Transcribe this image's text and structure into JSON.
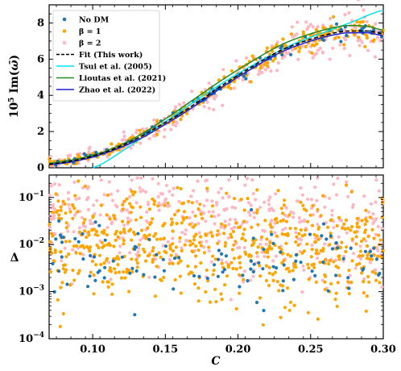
{
  "chart_data": [
    {
      "type": "scatter",
      "panel": "top",
      "xlim": [
        0.07,
        0.3
      ],
      "ylim": [
        0,
        9
      ],
      "ylabel": "10^5 Im(ω)",
      "yticks": [
        "0",
        "2",
        "4",
        "6",
        "8"
      ],
      "legend": {
        "placement": "upper-left",
        "entries": [
          {
            "label": "No DM",
            "marker": "dot",
            "color": "#1f77b4"
          },
          {
            "label": "β = 1",
            "marker": "dot",
            "color": "#ffa500"
          },
          {
            "label": "β = 2",
            "marker": "dot",
            "color": "#ffb6c1"
          },
          {
            "label": "Fit (This work)",
            "marker": "dashed-line",
            "color": "#000000"
          },
          {
            "label": "Tsui et al. (2005)",
            "marker": "line",
            "color": "#00e5ee"
          },
          {
            "label": "Lioutas et al. (2021)",
            "marker": "line",
            "color": "#228b22"
          },
          {
            "label": "Zhao et al. (2022)",
            "marker": "line",
            "color": "#1f1fcc"
          }
        ]
      },
      "series": [
        {
          "name": "Fit (This work)",
          "style": "dashed",
          "color": "#000000",
          "x": [
            0.07,
            0.09,
            0.11,
            0.13,
            0.15,
            0.17,
            0.19,
            0.21,
            0.23,
            0.25,
            0.27,
            0.28,
            0.29,
            0.3
          ],
          "y": [
            0.2,
            0.45,
            0.9,
            1.6,
            2.5,
            3.5,
            4.6,
            5.6,
            6.5,
            7.1,
            7.5,
            7.55,
            7.55,
            7.4
          ]
        },
        {
          "name": "Tsui et al. (2005)",
          "style": "solid",
          "color": "#00e5ee",
          "x": [
            0.1,
            0.12,
            0.14,
            0.16,
            0.18,
            0.2,
            0.22,
            0.24,
            0.26,
            0.28,
            0.3
          ],
          "y": [
            0.0,
            0.9,
            2.0,
            3.1,
            4.2,
            5.2,
            6.1,
            6.9,
            7.5,
            8.1,
            8.7
          ]
        },
        {
          "name": "Lioutas et al. (2021)",
          "style": "solid",
          "color": "#228b22",
          "x": [
            0.07,
            0.09,
            0.11,
            0.13,
            0.15,
            0.17,
            0.19,
            0.21,
            0.23,
            0.25,
            0.27,
            0.28,
            0.29,
            0.3
          ],
          "y": [
            0.25,
            0.5,
            0.95,
            1.7,
            2.7,
            3.8,
            4.9,
            5.9,
            6.8,
            7.4,
            7.8,
            7.85,
            7.8,
            7.6
          ]
        },
        {
          "name": "Zhao et al. (2022)",
          "style": "solid",
          "color": "#1f1fcc",
          "x": [
            0.07,
            0.09,
            0.11,
            0.13,
            0.15,
            0.17,
            0.19,
            0.21,
            0.23,
            0.25,
            0.27,
            0.28,
            0.29,
            0.3
          ],
          "y": [
            0.18,
            0.4,
            0.85,
            1.5,
            2.4,
            3.4,
            4.5,
            5.5,
            6.4,
            7.0,
            7.4,
            7.45,
            7.45,
            7.3
          ]
        }
      ],
      "scatter_series": [
        {
          "name": "β = 2",
          "color": "#ffb6c1",
          "n": 260,
          "spread": 0.45
        },
        {
          "name": "β = 1",
          "color": "#ffa500",
          "n": 260,
          "spread": 0.25
        },
        {
          "name": "No DM",
          "color": "#1f77b4",
          "n": 90,
          "spread": 0.15
        }
      ]
    },
    {
      "type": "scatter",
      "panel": "bottom",
      "xlim": [
        0.07,
        0.3
      ],
      "xticks": [
        "0.10",
        "0.15",
        "0.20",
        "0.25",
        "0.30"
      ],
      "xlabel": "C",
      "ylabel": "Δ",
      "yscale": "log",
      "ylim": [
        0.0001,
        0.3
      ],
      "yticks": [
        "10^-4",
        "10^-3",
        "10^-2",
        "10^-1"
      ],
      "scatter_series": [
        {
          "name": "β = 2",
          "color": "#ffb6c1",
          "n": 420,
          "center_log": -1.45,
          "spread_log": 0.55
        },
        {
          "name": "β = 1",
          "color": "#ffa500",
          "n": 620,
          "center_log": -1.9,
          "spread_log": 0.55
        },
        {
          "name": "No DM",
          "color": "#1f77b4",
          "n": 110,
          "center_log": -2.3,
          "spread_log": 0.45
        }
      ]
    }
  ]
}
